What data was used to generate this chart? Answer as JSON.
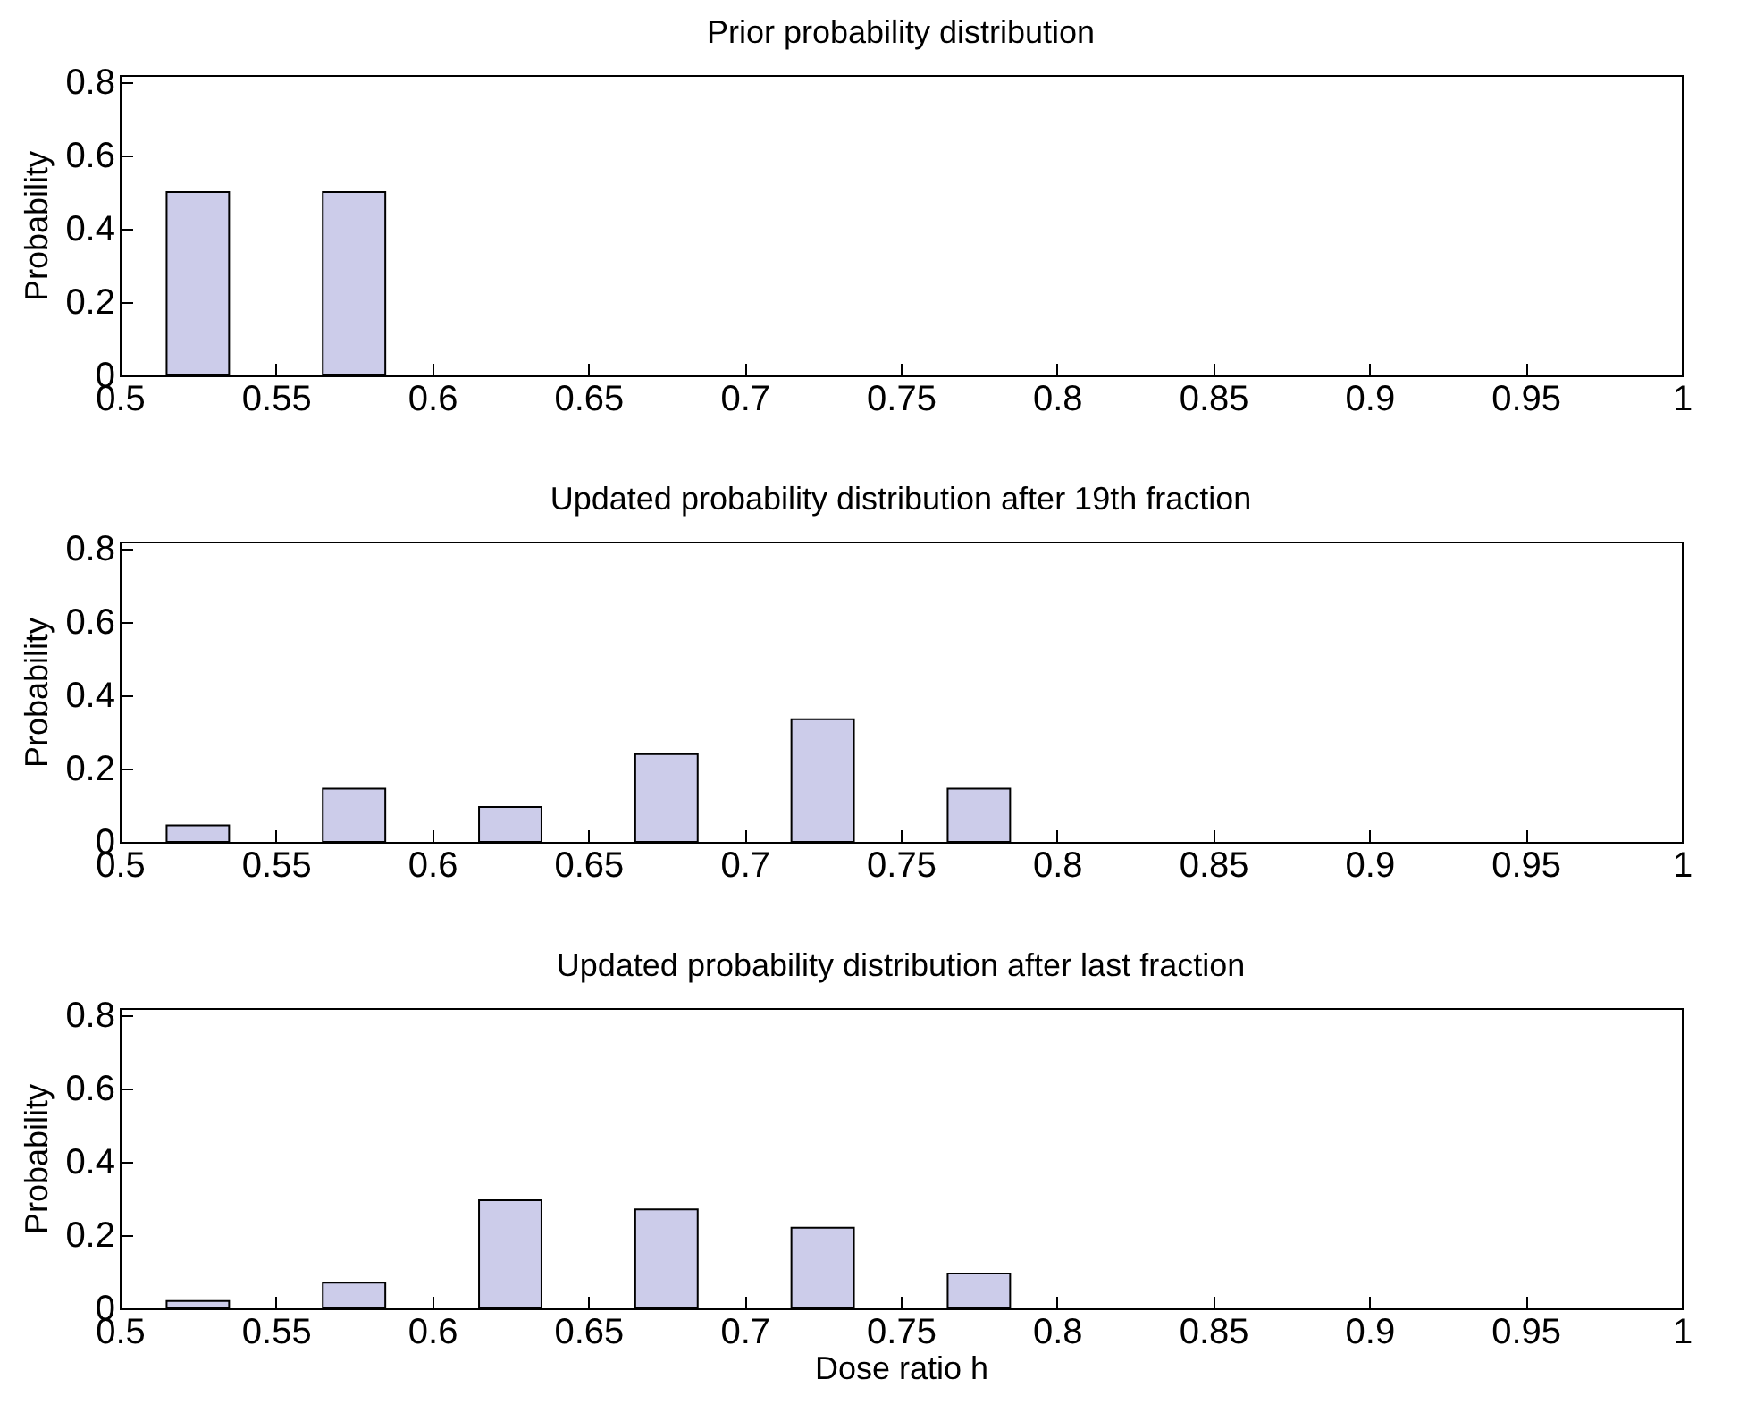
{
  "chart_data": [
    {
      "type": "bar",
      "title": "Prior probability distribution",
      "ylabel": "Probability",
      "x": [
        0.525,
        0.575
      ],
      "values": [
        0.5,
        0.5
      ],
      "color": "#ccccea",
      "xlim": [
        0.5,
        1
      ],
      "xticks": [
        0.5,
        0.55,
        0.6,
        0.65,
        0.7,
        0.75,
        0.8,
        0.85,
        0.9,
        0.95,
        1
      ],
      "ylim": [
        0,
        0.82
      ],
      "yticks": [
        0,
        0.2,
        0.4,
        0.6,
        0.8
      ],
      "grid": false
    },
    {
      "type": "bar",
      "title": "Updated probability distribution after 19th fraction",
      "ylabel": "Probability",
      "x": [
        0.525,
        0.575,
        0.625,
        0.675,
        0.725,
        0.775
      ],
      "values": [
        0.045,
        0.145,
        0.095,
        0.24,
        0.335,
        0.145
      ],
      "color": "#ccccea",
      "xlim": [
        0.5,
        1
      ],
      "xticks": [
        0.5,
        0.55,
        0.6,
        0.65,
        0.7,
        0.75,
        0.8,
        0.85,
        0.9,
        0.95,
        1
      ],
      "ylim": [
        0,
        0.82
      ],
      "yticks": [
        0,
        0.2,
        0.4,
        0.6,
        0.8
      ],
      "grid": false
    },
    {
      "type": "bar",
      "title": "Updated probability distribution after last fraction",
      "xlabel": "Dose ratio h",
      "ylabel": "Probability",
      "x": [
        0.525,
        0.575,
        0.625,
        0.675,
        0.725,
        0.775
      ],
      "values": [
        0.02,
        0.07,
        0.295,
        0.27,
        0.22,
        0.095
      ],
      "color": "#ccccea",
      "xlim": [
        0.5,
        1
      ],
      "xticks": [
        0.5,
        0.55,
        0.6,
        0.65,
        0.7,
        0.75,
        0.8,
        0.85,
        0.9,
        0.95,
        1
      ],
      "ylim": [
        0,
        0.82
      ],
      "yticks": [
        0,
        0.2,
        0.4,
        0.6,
        0.8
      ],
      "grid": false
    }
  ]
}
